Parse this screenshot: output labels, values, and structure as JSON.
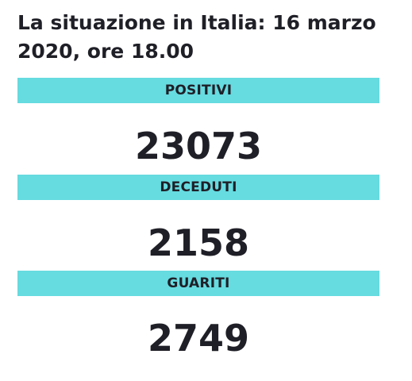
{
  "title": "La situazione in Italia: 16 marzo 2020, ore 18.00",
  "sections": [
    {
      "label": "POSITIVI",
      "value": "23073"
    },
    {
      "label": "DECEDUTI",
      "value": "2158"
    },
    {
      "label": "GUARITI",
      "value": "2749"
    }
  ],
  "colors": {
    "band": "#66dbe0",
    "text": "#1f1f27",
    "background": "#ffffff"
  }
}
